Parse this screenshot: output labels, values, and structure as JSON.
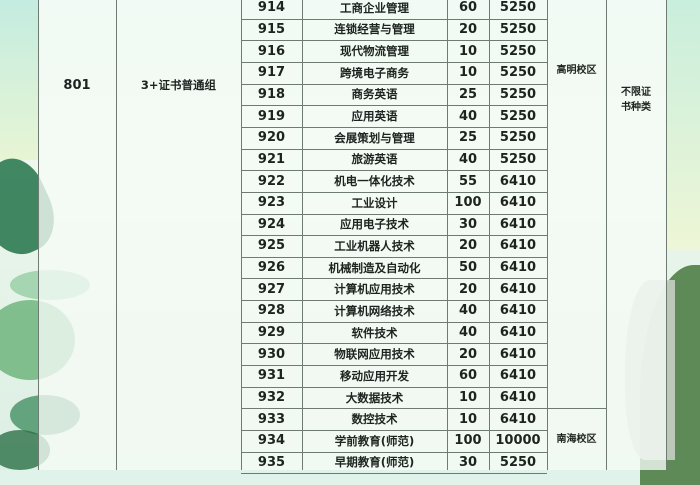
{
  "group": {
    "code": "801",
    "name": "3+证书普通组"
  },
  "campuses": [
    "高明校区",
    "南海校区"
  ],
  "note": "不限证书种类",
  "rows": [
    {
      "code": "914",
      "major": "工商企业管理",
      "count": "60",
      "fee": "5250"
    },
    {
      "code": "915",
      "major": "连锁经营与管理",
      "count": "20",
      "fee": "5250"
    },
    {
      "code": "916",
      "major": "现代物流管理",
      "count": "10",
      "fee": "5250"
    },
    {
      "code": "917",
      "major": "跨境电子商务",
      "count": "10",
      "fee": "5250"
    },
    {
      "code": "918",
      "major": "商务英语",
      "count": "25",
      "fee": "5250"
    },
    {
      "code": "919",
      "major": "应用英语",
      "count": "40",
      "fee": "5250"
    },
    {
      "code": "920",
      "major": "会展策划与管理",
      "count": "25",
      "fee": "5250"
    },
    {
      "code": "921",
      "major": "旅游英语",
      "count": "40",
      "fee": "5250"
    },
    {
      "code": "922",
      "major": "机电一体化技术",
      "count": "55",
      "fee": "6410"
    },
    {
      "code": "923",
      "major": "工业设计",
      "count": "100",
      "fee": "6410"
    },
    {
      "code": "924",
      "major": "应用电子技术",
      "count": "30",
      "fee": "6410"
    },
    {
      "code": "925",
      "major": "工业机器人技术",
      "count": "20",
      "fee": "6410"
    },
    {
      "code": "926",
      "major": "机械制造及自动化",
      "count": "50",
      "fee": "6410"
    },
    {
      "code": "927",
      "major": "计算机应用技术",
      "count": "20",
      "fee": "6410"
    },
    {
      "code": "928",
      "major": "计算机网络技术",
      "count": "40",
      "fee": "6410"
    },
    {
      "code": "929",
      "major": "软件技术",
      "count": "40",
      "fee": "6410"
    },
    {
      "code": "930",
      "major": "物联网应用技术",
      "count": "20",
      "fee": "6410"
    },
    {
      "code": "931",
      "major": "移动应用开发",
      "count": "60",
      "fee": "6410"
    },
    {
      "code": "932",
      "major": "大数据技术",
      "count": "10",
      "fee": "6410"
    },
    {
      "code": "933",
      "major": "数控技术",
      "count": "10",
      "fee": "6410"
    },
    {
      "code": "934",
      "major": "学前教育(师范)",
      "count": "100",
      "fee": "10000"
    },
    {
      "code": "935",
      "major": "早期教育(师范)",
      "count": "30",
      "fee": "5250"
    }
  ]
}
